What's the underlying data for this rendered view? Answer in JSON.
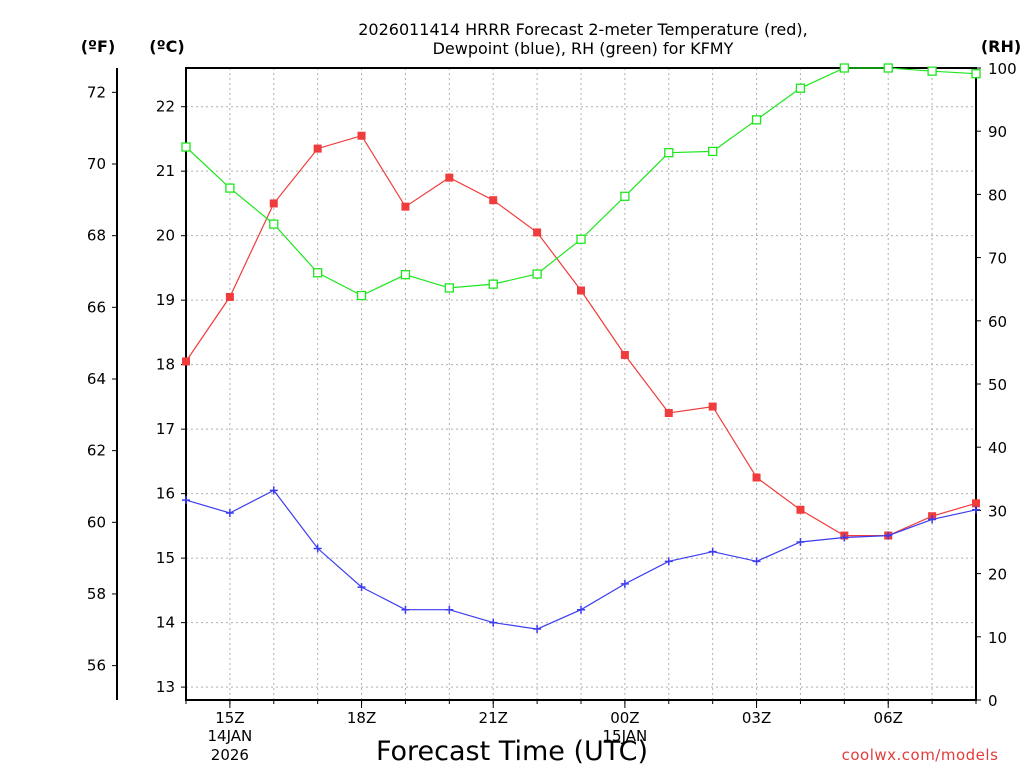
{
  "chart_data": {
    "type": "line",
    "title_line1": "2026011414 HRRR Forecast 2-meter Temperature (red),",
    "title_line2": "Dewpoint (blue), RH (green) for KFMY",
    "xlabel": "Forecast Time (UTC)",
    "credit": "coolwx.com/models",
    "units": {
      "fahrenheit": "(ºF)",
      "celsius": "(ºC)",
      "rh": "(RH)"
    },
    "x_hours": [
      14,
      15,
      16,
      17,
      18,
      19,
      20,
      21,
      22,
      23,
      24,
      25,
      26,
      27,
      28,
      29,
      30,
      31,
      32
    ],
    "x_range": [
      14,
      32
    ],
    "x_ticks": [
      {
        "hour": 15,
        "label": "15Z",
        "sub1": "14JAN",
        "sub2": "2026"
      },
      {
        "hour": 18,
        "label": "18Z",
        "sub1": "",
        "sub2": ""
      },
      {
        "hour": 21,
        "label": "21Z",
        "sub1": "",
        "sub2": ""
      },
      {
        "hour": 24,
        "label": "00Z",
        "sub1": "15JAN",
        "sub2": ""
      },
      {
        "hour": 27,
        "label": "03Z",
        "sub1": "",
        "sub2": ""
      },
      {
        "hour": 30,
        "label": "06Z",
        "sub1": "",
        "sub2": ""
      }
    ],
    "celsius_axis": {
      "min": 12.8,
      "max": 22.6,
      "ticks": [
        13,
        14,
        15,
        16,
        17,
        18,
        19,
        20,
        21,
        22
      ]
    },
    "fahrenheit_axis": {
      "ticks": [
        56,
        58,
        60,
        62,
        64,
        66,
        68,
        70,
        72
      ]
    },
    "rh_axis": {
      "min": 0,
      "max": 100,
      "ticks": [
        0,
        10,
        20,
        30,
        40,
        50,
        60,
        70,
        80,
        90,
        100
      ]
    },
    "series": [
      {
        "name": "Temperature",
        "color": "#f03c3c",
        "marker": "filled-square",
        "axis": "celsius",
        "values": [
          18.05,
          19.05,
          20.5,
          21.35,
          21.55,
          20.45,
          20.9,
          20.55,
          20.05,
          19.15,
          18.15,
          17.25,
          17.35,
          16.25,
          15.75,
          15.35,
          15.35,
          15.65,
          15.85
        ]
      },
      {
        "name": "Dewpoint",
        "color": "#3c3cf0",
        "marker": "plus",
        "axis": "celsius",
        "values": [
          15.9,
          15.7,
          16.05,
          15.15,
          14.55,
          14.2,
          14.2,
          14.0,
          13.9,
          14.2,
          14.6,
          14.95,
          15.1,
          14.95,
          15.25,
          15.32,
          15.35,
          15.6,
          15.75
        ]
      },
      {
        "name": "RH",
        "color": "#1ee61e",
        "marker": "open-square",
        "axis": "rh",
        "values": [
          87.5,
          81.0,
          75.3,
          67.6,
          64.0,
          67.3,
          65.2,
          65.8,
          67.4,
          72.9,
          79.7,
          86.6,
          86.8,
          91.8,
          96.8,
          100.0,
          100.0,
          99.5,
          99.1
        ]
      }
    ]
  }
}
